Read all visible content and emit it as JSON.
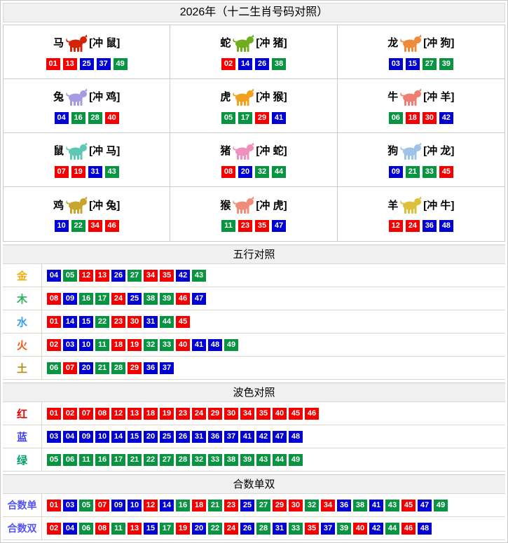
{
  "title": "2026年（十二生肖号码对照）",
  "ball_colors": {
    "red": "#f50000",
    "blue": "#0000d2",
    "green": "#089441"
  },
  "zodiac": {
    "cells": [
      {
        "name": "马",
        "clash": "[冲 鼠]",
        "icon": "horse-icon",
        "icon_color": "#d42408",
        "numbers": [
          "01",
          "13",
          "25",
          "37",
          "49"
        ]
      },
      {
        "name": "蛇",
        "clash": "[冲 猪]",
        "icon": "snake-icon",
        "icon_color": "#6fae1f",
        "numbers": [
          "02",
          "14",
          "26",
          "38"
        ]
      },
      {
        "name": "龙",
        "clash": "[冲 狗]",
        "icon": "dragon-icon",
        "icon_color": "#ef8a3a",
        "numbers": [
          "03",
          "15",
          "27",
          "39"
        ]
      },
      {
        "name": "兔",
        "clash": "[冲 鸡]",
        "icon": "rabbit-icon",
        "icon_color": "#a79ae0",
        "numbers": [
          "04",
          "16",
          "28",
          "40"
        ]
      },
      {
        "name": "虎",
        "clash": "[冲 猴]",
        "icon": "tiger-icon",
        "icon_color": "#f0a01e",
        "numbers": [
          "05",
          "17",
          "29",
          "41"
        ]
      },
      {
        "name": "牛",
        "clash": "[冲 羊]",
        "icon": "ox-icon",
        "icon_color": "#ef7e72",
        "numbers": [
          "06",
          "18",
          "30",
          "42"
        ]
      },
      {
        "name": "鼠",
        "clash": "[冲 马]",
        "icon": "rat-icon",
        "icon_color": "#5fc8b4",
        "numbers": [
          "07",
          "19",
          "31",
          "43"
        ]
      },
      {
        "name": "猪",
        "clash": "[冲 蛇]",
        "icon": "pig-icon",
        "icon_color": "#f090bd",
        "numbers": [
          "08",
          "20",
          "32",
          "44"
        ]
      },
      {
        "name": "狗",
        "clash": "[冲 龙]",
        "icon": "dog-icon",
        "icon_color": "#9fc3e8",
        "numbers": [
          "09",
          "21",
          "33",
          "45"
        ]
      },
      {
        "name": "鸡",
        "clash": "[冲 兔]",
        "icon": "rooster-icon",
        "icon_color": "#c8a52c",
        "numbers": [
          "10",
          "22",
          "34",
          "46"
        ]
      },
      {
        "name": "猴",
        "clash": "[冲 虎]",
        "icon": "monkey-icon",
        "icon_color": "#ef8d7a",
        "numbers": [
          "11",
          "23",
          "35",
          "47"
        ]
      },
      {
        "name": "羊",
        "clash": "[冲 牛]",
        "icon": "goat-icon",
        "icon_color": "#dcc03a",
        "numbers": [
          "12",
          "24",
          "36",
          "48"
        ]
      }
    ]
  },
  "sections": [
    {
      "title": "五行对照",
      "rows": [
        {
          "label": "金",
          "label_color": "#eab117",
          "numbers": [
            "04",
            "05",
            "12",
            "13",
            "26",
            "27",
            "34",
            "35",
            "42",
            "43"
          ]
        },
        {
          "label": "木",
          "label_color": "#2db55d",
          "numbers": [
            "08",
            "09",
            "16",
            "17",
            "24",
            "25",
            "38",
            "39",
            "46",
            "47"
          ]
        },
        {
          "label": "水",
          "label_color": "#3aa0f0",
          "numbers": [
            "01",
            "14",
            "15",
            "22",
            "23",
            "30",
            "31",
            "44",
            "45"
          ]
        },
        {
          "label": "火",
          "label_color": "#f4560d",
          "numbers": [
            "02",
            "03",
            "10",
            "11",
            "18",
            "19",
            "32",
            "33",
            "40",
            "41",
            "48",
            "49"
          ]
        },
        {
          "label": "土",
          "label_color": "#bb8b0f",
          "numbers": [
            "06",
            "07",
            "20",
            "21",
            "28",
            "29",
            "36",
            "37"
          ]
        }
      ]
    },
    {
      "title": "波色对照",
      "rows": [
        {
          "label": "红",
          "label_color": "#ee0000",
          "ball_color_key": "red",
          "numbers": [
            "01",
            "02",
            "07",
            "08",
            "12",
            "13",
            "18",
            "19",
            "23",
            "24",
            "29",
            "30",
            "34",
            "35",
            "40",
            "45",
            "46"
          ]
        },
        {
          "label": "蓝",
          "label_color": "#4444ee",
          "ball_color_key": "blue",
          "numbers": [
            "03",
            "04",
            "09",
            "10",
            "14",
            "15",
            "20",
            "25",
            "26",
            "31",
            "36",
            "37",
            "41",
            "42",
            "47",
            "48"
          ]
        },
        {
          "label": "绿",
          "label_color": "#00a05e",
          "ball_color_key": "green",
          "numbers": [
            "05",
            "06",
            "11",
            "16",
            "17",
            "21",
            "22",
            "27",
            "28",
            "32",
            "33",
            "38",
            "39",
            "43",
            "44",
            "49"
          ]
        }
      ]
    },
    {
      "title": "合数单双",
      "rows": [
        {
          "label": "合数单",
          "label_color": "#5353fa",
          "small_label": true,
          "numbers": [
            "01",
            "03",
            "05",
            "07",
            "09",
            "10",
            "12",
            "14",
            "16",
            "18",
            "21",
            "23",
            "25",
            "27",
            "29",
            "30",
            "32",
            "34",
            "36",
            "38",
            "41",
            "43",
            "45",
            "47",
            "49"
          ]
        },
        {
          "label": "合数双",
          "label_color": "#5353fa",
          "small_label": true,
          "numbers": [
            "02",
            "04",
            "06",
            "08",
            "11",
            "13",
            "15",
            "17",
            "19",
            "20",
            "22",
            "24",
            "26",
            "28",
            "31",
            "33",
            "35",
            "37",
            "39",
            "40",
            "42",
            "44",
            "46",
            "48"
          ]
        }
      ]
    }
  ]
}
